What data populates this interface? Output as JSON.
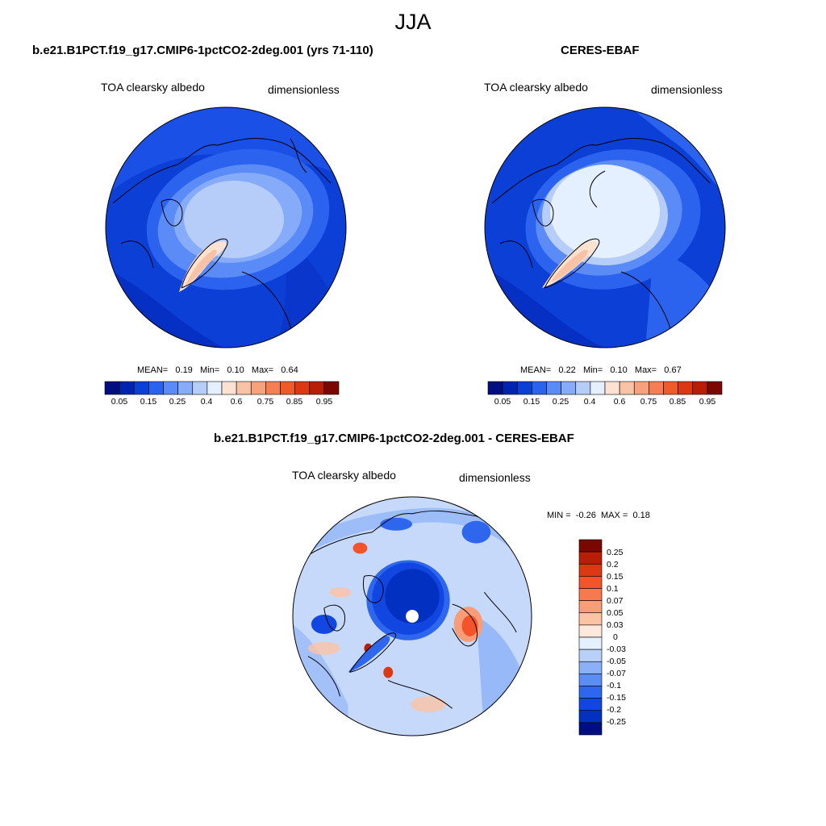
{
  "figure": {
    "title": "JJA"
  },
  "panels": [
    {
      "id": "model",
      "title": "b.e21.B1PCT.f19_g17.CMIP6-1pctCO2-2deg.001 (yrs 71-110)",
      "variable": "TOA clearsky albedo",
      "units": "dimensionless",
      "stats": {
        "mean_label": "MEAN=",
        "mean": "0.19",
        "min_label": "Min=",
        "min": "0.10",
        "max_label": "Max=",
        "max": "0.64"
      },
      "colorbar_ticks": [
        "0.05",
        "0.15",
        "0.25",
        "0.4",
        "0.6",
        "0.75",
        "0.85",
        "0.95"
      ],
      "colorbar_colors": [
        "#000e80",
        "#0024b0",
        "#0b3fd6",
        "#2b63ef",
        "#5a8bf7",
        "#86abf8",
        "#b5cdf8",
        "#e4efff",
        "#fde2d1",
        "#f8c2a5",
        "#f7a27c",
        "#f57e55",
        "#ef5a2b",
        "#dc3813",
        "#b81e05",
        "#7a0800"
      ]
    },
    {
      "id": "obs",
      "title": "CERES-EBAF",
      "variable": "TOA clearsky albedo",
      "units": "dimensionless",
      "stats": {
        "mean_label": "MEAN=",
        "mean": "0.22",
        "min_label": "Min=",
        "min": "0.10",
        "max_label": "Max=",
        "max": "0.67"
      },
      "colorbar_ticks": [
        "0.05",
        "0.15",
        "0.25",
        "0.4",
        "0.6",
        "0.75",
        "0.85",
        "0.95"
      ],
      "colorbar_colors": [
        "#000e80",
        "#0024b0",
        "#0b3fd6",
        "#2b63ef",
        "#5a8bf7",
        "#86abf8",
        "#b5cdf8",
        "#e4efff",
        "#fde2d1",
        "#f8c2a5",
        "#f7a27c",
        "#f57e55",
        "#ef5a2b",
        "#dc3813",
        "#b81e05",
        "#7a0800"
      ]
    },
    {
      "id": "diff",
      "title": "b.e21.B1PCT.f19_g17.CMIP6-1pctCO2-2deg.001 - CERES-EBAF",
      "variable": "TOA clearsky albedo",
      "units": "dimensionless",
      "stats": {
        "min_label": "MIN =",
        "min": "-0.26",
        "max_label": "MAX =",
        "max": "0.18"
      },
      "colorbar_ticks": [
        "0.25",
        "0.2",
        "0.15",
        "0.1",
        "0.07",
        "0.05",
        "0.03",
        "0",
        "-0.03",
        "-0.05",
        "-0.07",
        "-0.1",
        "-0.15",
        "-0.2",
        "-0.25"
      ],
      "colorbar_colors": [
        "#7a0800",
        "#b81e05",
        "#dc3813",
        "#f5542a",
        "#f7794f",
        "#f89d78",
        "#fbc3a4",
        "#fde9dc",
        "#e4efff",
        "#b9d0f8",
        "#8cb0f7",
        "#5c8df3",
        "#2f66ee",
        "#1146e0",
        "#0230c0",
        "#000e80"
      ]
    }
  ]
}
